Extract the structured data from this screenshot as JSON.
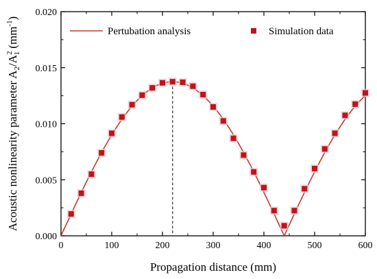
{
  "chart_data": {
    "type": "line",
    "title": "",
    "xlabel": "Propagation distance (mm)",
    "ylabel": {
      "prefix": "Acoustic nonlinearity parameter A",
      "sub1": "2",
      "mid": "/A",
      "sup": "2",
      "sub2": "1",
      "unit_open": " (mm",
      "unit_sup": "-1",
      "unit_close": ")"
    },
    "xlim": [
      0,
      600
    ],
    "ylim": [
      0,
      0.02
    ],
    "xticks": [
      0,
      100,
      200,
      300,
      400,
      500,
      600
    ],
    "xtick_labels": [
      "0",
      "100",
      "200",
      "300",
      "400",
      "500",
      "600"
    ],
    "yticks": [
      0,
      0.005,
      0.01,
      0.015,
      0.02
    ],
    "ytick_labels": [
      "0.000",
      "0.005",
      "0.010",
      "0.015",
      "0.020"
    ],
    "grid": false,
    "legend_placement": "top",
    "series": [
      {
        "name": "Pertubation analysis",
        "kind": "line",
        "color": "#c0392b",
        "model": {
          "amplitude": 0.01375,
          "zero_crossing": 440
        }
      },
      {
        "name": "Simulation data",
        "kind": "scatter",
        "color": "#c0141a",
        "x": [
          20,
          40,
          60,
          80,
          100,
          120,
          140,
          160,
          180,
          200,
          220,
          240,
          260,
          280,
          300,
          320,
          340,
          360,
          380,
          400,
          420,
          440,
          460,
          480,
          500,
          520,
          540,
          560,
          580,
          600
        ],
        "y": [
          0.00195,
          0.0038,
          0.0055,
          0.0074,
          0.00915,
          0.0106,
          0.0117,
          0.01255,
          0.0132,
          0.01365,
          0.01375,
          0.0137,
          0.01335,
          0.0126,
          0.0115,
          0.01025,
          0.0087,
          0.0072,
          0.0057,
          0.0043,
          0.00225,
          0.0009,
          0.00225,
          0.0042,
          0.006,
          0.00775,
          0.00915,
          0.01075,
          0.01175,
          0.01275
        ]
      }
    ],
    "annotations": [
      {
        "type": "vline",
        "x": 220,
        "y_to": 0.01375,
        "style": "dashed"
      }
    ],
    "colors": {
      "line": "#c0392b",
      "marker": "#c0141a",
      "marker_halo": "#f0c8d0",
      "axis": "#000000"
    }
  }
}
